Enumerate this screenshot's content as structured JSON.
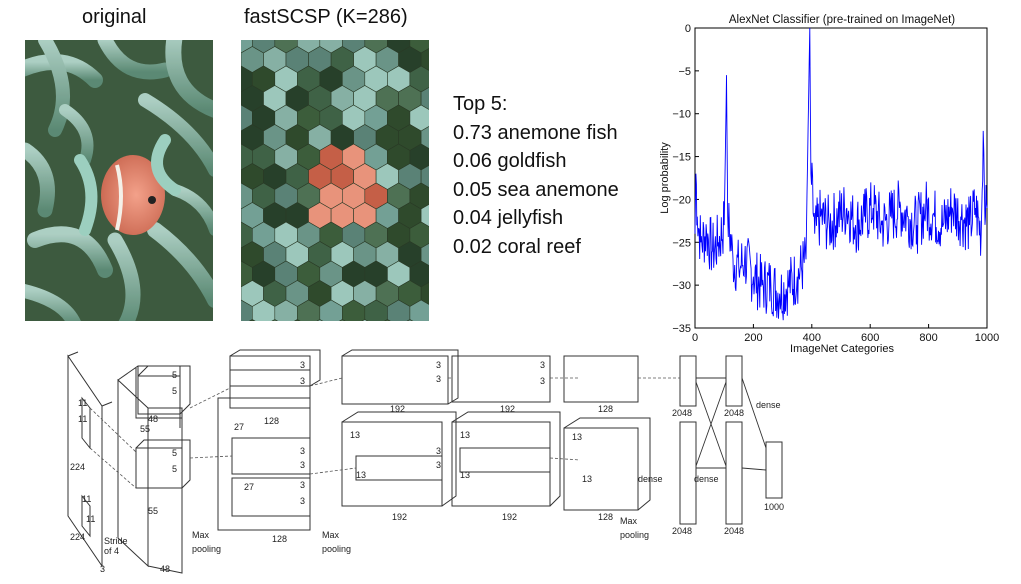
{
  "captions": {
    "original": "original",
    "superpixel": "fastSCSP (K=286)"
  },
  "top5": {
    "heading": "Top 5:",
    "items": [
      {
        "score": "0.73",
        "label": "anemone fish"
      },
      {
        "score": "0.06",
        "label": "goldfish"
      },
      {
        "score": "0.05",
        "label": "sea anemone"
      },
      {
        "score": "0.04",
        "label": "jellyfish"
      },
      {
        "score": "0.02",
        "label": "coral reef"
      }
    ]
  },
  "chart_data": {
    "type": "line",
    "title": "AlexNet Classifier (pre-trained on ImageNet)",
    "xlabel": "ImageNet Categories",
    "ylabel": "Log probability",
    "xlim": [
      0,
      1000
    ],
    "ylim": [
      -35,
      0
    ],
    "xticks": [
      0,
      200,
      400,
      600,
      800,
      1000
    ],
    "yticks": [
      0,
      -5,
      -10,
      -15,
      -20,
      -25,
      -30,
      -35
    ],
    "series_color": "#0000ff",
    "series": [
      {
        "x": [
          0,
          3,
          8,
          20,
          40,
          60,
          80,
          100,
          108,
          112,
          130,
          150,
          170,
          200,
          230,
          260,
          290,
          320,
          350,
          380,
          393,
          397,
          410,
          430,
          460,
          490,
          520,
          550,
          580,
          610,
          640,
          670,
          700,
          730,
          760,
          790,
          820,
          850,
          880,
          910,
          940,
          960,
          980,
          987,
          995,
          1000
        ],
        "y": [
          -24,
          -17,
          -22,
          -25,
          -24,
          -26,
          -25,
          -23,
          -5.5,
          -22,
          -27,
          -28,
          -27,
          -29,
          -30,
          -30,
          -31,
          -30,
          -29,
          -27,
          0,
          -17,
          -24,
          -22,
          -23,
          -22,
          -21,
          -23,
          -22,
          -21,
          -23,
          -22,
          -21,
          -22,
          -23,
          -21,
          -22,
          -23,
          -21,
          -22,
          -23,
          -21,
          -24,
          -12,
          -22,
          -21
        ]
      }
    ]
  },
  "diagram": {
    "num_48a": "48",
    "num_48b": "48",
    "num_128a": "128",
    "num_128b": "128",
    "num_192a": "192",
    "num_192b": "192",
    "num_128c": "128",
    "num_128d": "128",
    "num_192c": "192",
    "num_192d": "192",
    "num_2048a": "2048",
    "num_2048b": "2048",
    "num_2048c": "2048",
    "num_2048d": "2048",
    "num_1000": "1000",
    "num_224a": "224",
    "num_224b": "224",
    "num_3": "3",
    "num_11a": "11",
    "num_11b": "11",
    "num_11c": "11",
    "num_11d": "11",
    "num_55a": "55",
    "num_55b": "55",
    "num_5a": "5",
    "num_5b": "5",
    "num_5c": "5",
    "num_5d": "5",
    "num_27a": "27",
    "num_27b": "27",
    "num_3a": "3",
    "num_3b": "3",
    "num_3c": "3",
    "num_3d": "3",
    "num_3e": "3",
    "num_3f": "3",
    "num_3g": "3",
    "num_3h": "3",
    "num_3i": "3",
    "num_3j": "3",
    "num_3k": "3",
    "num_3l": "3",
    "num_13a": "13",
    "num_13b": "13",
    "num_13c": "13",
    "num_13d": "13",
    "num_13e": "13",
    "num_13f": "13",
    "stride_1": "Stride",
    "stride_2": "of 4",
    "max1a": "Max",
    "max1b": "pooling",
    "max2a": "Max",
    "max2b": "pooling",
    "max3a": "Max",
    "max3b": "pooling",
    "dense1": "dense",
    "dense2": "dense",
    "dense3": "dense"
  }
}
